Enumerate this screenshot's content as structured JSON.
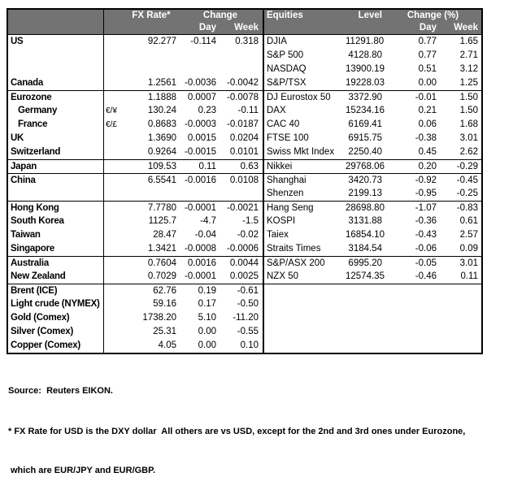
{
  "chart_data": [
    {
      "type": "table",
      "name": "fx_rates",
      "header": {
        "rate": "FX Rate*",
        "change": "Change",
        "day": "Day",
        "week": "Week"
      },
      "rows": [
        {
          "label": "US",
          "sym": "",
          "rate": "92.277",
          "day": "-0.114",
          "week": "0.318"
        },
        {
          "label": "",
          "sym": "",
          "rate": "",
          "day": "",
          "week": ""
        },
        {
          "label": "",
          "sym": "",
          "rate": "",
          "day": "",
          "week": ""
        },
        {
          "label": "Canada",
          "sym": "",
          "rate": "1.2561",
          "day": "-0.0036",
          "week": "-0.0042"
        },
        {
          "label": "Eurozone",
          "sym": "",
          "rate": "1.1888",
          "day": "0.0007",
          "week": "-0.0078",
          "group_start": true
        },
        {
          "label": "Germany",
          "sym": "€/¥",
          "rate": "130.24",
          "day": "0.23",
          "week": "-0.11",
          "indent": true
        },
        {
          "label": "France",
          "sym": "€/£",
          "rate": "0.8683",
          "day": "-0.0003",
          "week": "-0.0187",
          "indent": true
        },
        {
          "label": "UK",
          "sym": "",
          "rate": "1.3690",
          "day": "0.0015",
          "week": "0.0204"
        },
        {
          "label": "Switzerland",
          "sym": "",
          "rate": "0.9264",
          "day": "-0.0015",
          "week": "0.0101"
        },
        {
          "label": "Japan",
          "sym": "",
          "rate": "109.53",
          "day": "0.11",
          "week": "0.63",
          "group_start": true
        },
        {
          "label": "China",
          "sym": "",
          "rate": "6.5541",
          "day": "-0.0016",
          "week": "0.0108",
          "group_start": true
        },
        {
          "label": "",
          "sym": "",
          "rate": "",
          "day": "",
          "week": ""
        },
        {
          "label": "Hong Kong",
          "sym": "",
          "rate": "7.7780",
          "day": "-0.0001",
          "week": "-0.0021",
          "group_start": true
        },
        {
          "label": "South Korea",
          "sym": "",
          "rate": "1125.7",
          "day": "-4.7",
          "week": "-1.5"
        },
        {
          "label": "Taiwan",
          "sym": "",
          "rate": "28.47",
          "day": "-0.04",
          "week": "-0.02"
        },
        {
          "label": "Singapore",
          "sym": "",
          "rate": "1.3421",
          "day": "-0.0008",
          "week": "-0.0006"
        },
        {
          "label": "Australia",
          "sym": "",
          "rate": "0.7604",
          "day": "0.0016",
          "week": "0.0044",
          "group_start": true
        },
        {
          "label": "New Zealand",
          "sym": "",
          "rate": "0.7029",
          "day": "-0.0001",
          "week": "0.0025"
        },
        {
          "label": "Brent (ICE)",
          "sym": "",
          "rate": "62.76",
          "day": "0.19",
          "week": "-0.61",
          "group_start": true
        },
        {
          "label": "Light crude (NYMEX)",
          "sym": "",
          "rate": "59.16",
          "day": "0.17",
          "week": "-0.50"
        },
        {
          "label": "Gold (Comex)",
          "sym": "",
          "rate": "1738.20",
          "day": "5.10",
          "week": "-11.20"
        },
        {
          "label": "Silver (Comex)",
          "sym": "",
          "rate": "25.31",
          "day": "0.00",
          "week": "-0.55"
        },
        {
          "label": "Copper (Comex)",
          "sym": "",
          "rate": "4.05",
          "day": "0.00",
          "week": "0.10"
        }
      ]
    },
    {
      "type": "table",
      "name": "equities",
      "header": {
        "label": "Equities",
        "level": "Level",
        "change": "Change (%)",
        "day": "Day",
        "week": "Week"
      },
      "rows": [
        {
          "label": "DJIA",
          "level": "11291.80",
          "day": "0.77",
          "week": "1.65"
        },
        {
          "label": "S&P 500",
          "level": "4128.80",
          "day": "0.77",
          "week": "2.71"
        },
        {
          "label": "NASDAQ",
          "level": "13900.19",
          "day": "0.51",
          "week": "3.12"
        },
        {
          "label": "S&P/TSX",
          "level": "19228.03",
          "day": "0.00",
          "week": "1.25"
        },
        {
          "label": "DJ Eurostox 50",
          "level": "3372.90",
          "day": "-0.01",
          "week": "1.50",
          "group_start": true
        },
        {
          "label": "DAX",
          "level": "15234.16",
          "day": "0.21",
          "week": "1.50"
        },
        {
          "label": "CAC 40",
          "level": "6169.41",
          "day": "0.06",
          "week": "1.68"
        },
        {
          "label": "FTSE 100",
          "level": "6915.75",
          "day": "-0.38",
          "week": "3.01"
        },
        {
          "label": "Swiss Mkt Index",
          "level": "2250.40",
          "day": "0.45",
          "week": "2.62"
        },
        {
          "label": "Nikkei",
          "level": "29768.06",
          "day": "0.20",
          "week": "-0.29",
          "group_start": true
        },
        {
          "label": "Shanghai",
          "level": "3420.73",
          "day": "-0.92",
          "week": "-0.45",
          "group_start": true
        },
        {
          "label": "Shenzen",
          "level": "2199.13",
          "day": "-0.95",
          "week": "-0.25"
        },
        {
          "label": "Hang Seng",
          "level": "28698.80",
          "day": "-1.07",
          "week": "-0.83",
          "group_start": true
        },
        {
          "label": "KOSPI",
          "level": "3131.88",
          "day": "-0.36",
          "week": "0.61"
        },
        {
          "label": "Taiex",
          "level": "16854.10",
          "day": "-0.43",
          "week": "2.57"
        },
        {
          "label": "Straits Times",
          "level": "3184.54",
          "day": "-0.06",
          "week": "0.09"
        },
        {
          "label": "S&P/ASX 200",
          "level": "6995.20",
          "day": "-0.05",
          "week": "3.01",
          "group_start": true
        },
        {
          "label": "NZX 50",
          "level": "12574.35",
          "day": "-0.46",
          "week": "0.11"
        },
        {
          "label": "",
          "level": "",
          "day": "",
          "week": "",
          "group_start": true
        },
        {
          "label": "",
          "level": "",
          "day": "",
          "week": ""
        },
        {
          "label": "",
          "level": "",
          "day": "",
          "week": ""
        },
        {
          "label": "",
          "level": "",
          "day": "",
          "week": ""
        },
        {
          "label": "",
          "level": "",
          "day": "",
          "week": ""
        }
      ]
    }
  ],
  "footer": {
    "source": "Source:  Reuters EIKON.",
    "footnote_line1": "* FX Rate for USD is the DXY dollar  All others are vs USD, except for the 2nd and 3rd ones under Eurozone,",
    "footnote_line2": "which are EUR/JPY and EUR/GBP."
  },
  "colors": {
    "header_bg": "#737373",
    "header_text": "#ffffff",
    "border": "#000000",
    "body_text": "#000000"
  }
}
